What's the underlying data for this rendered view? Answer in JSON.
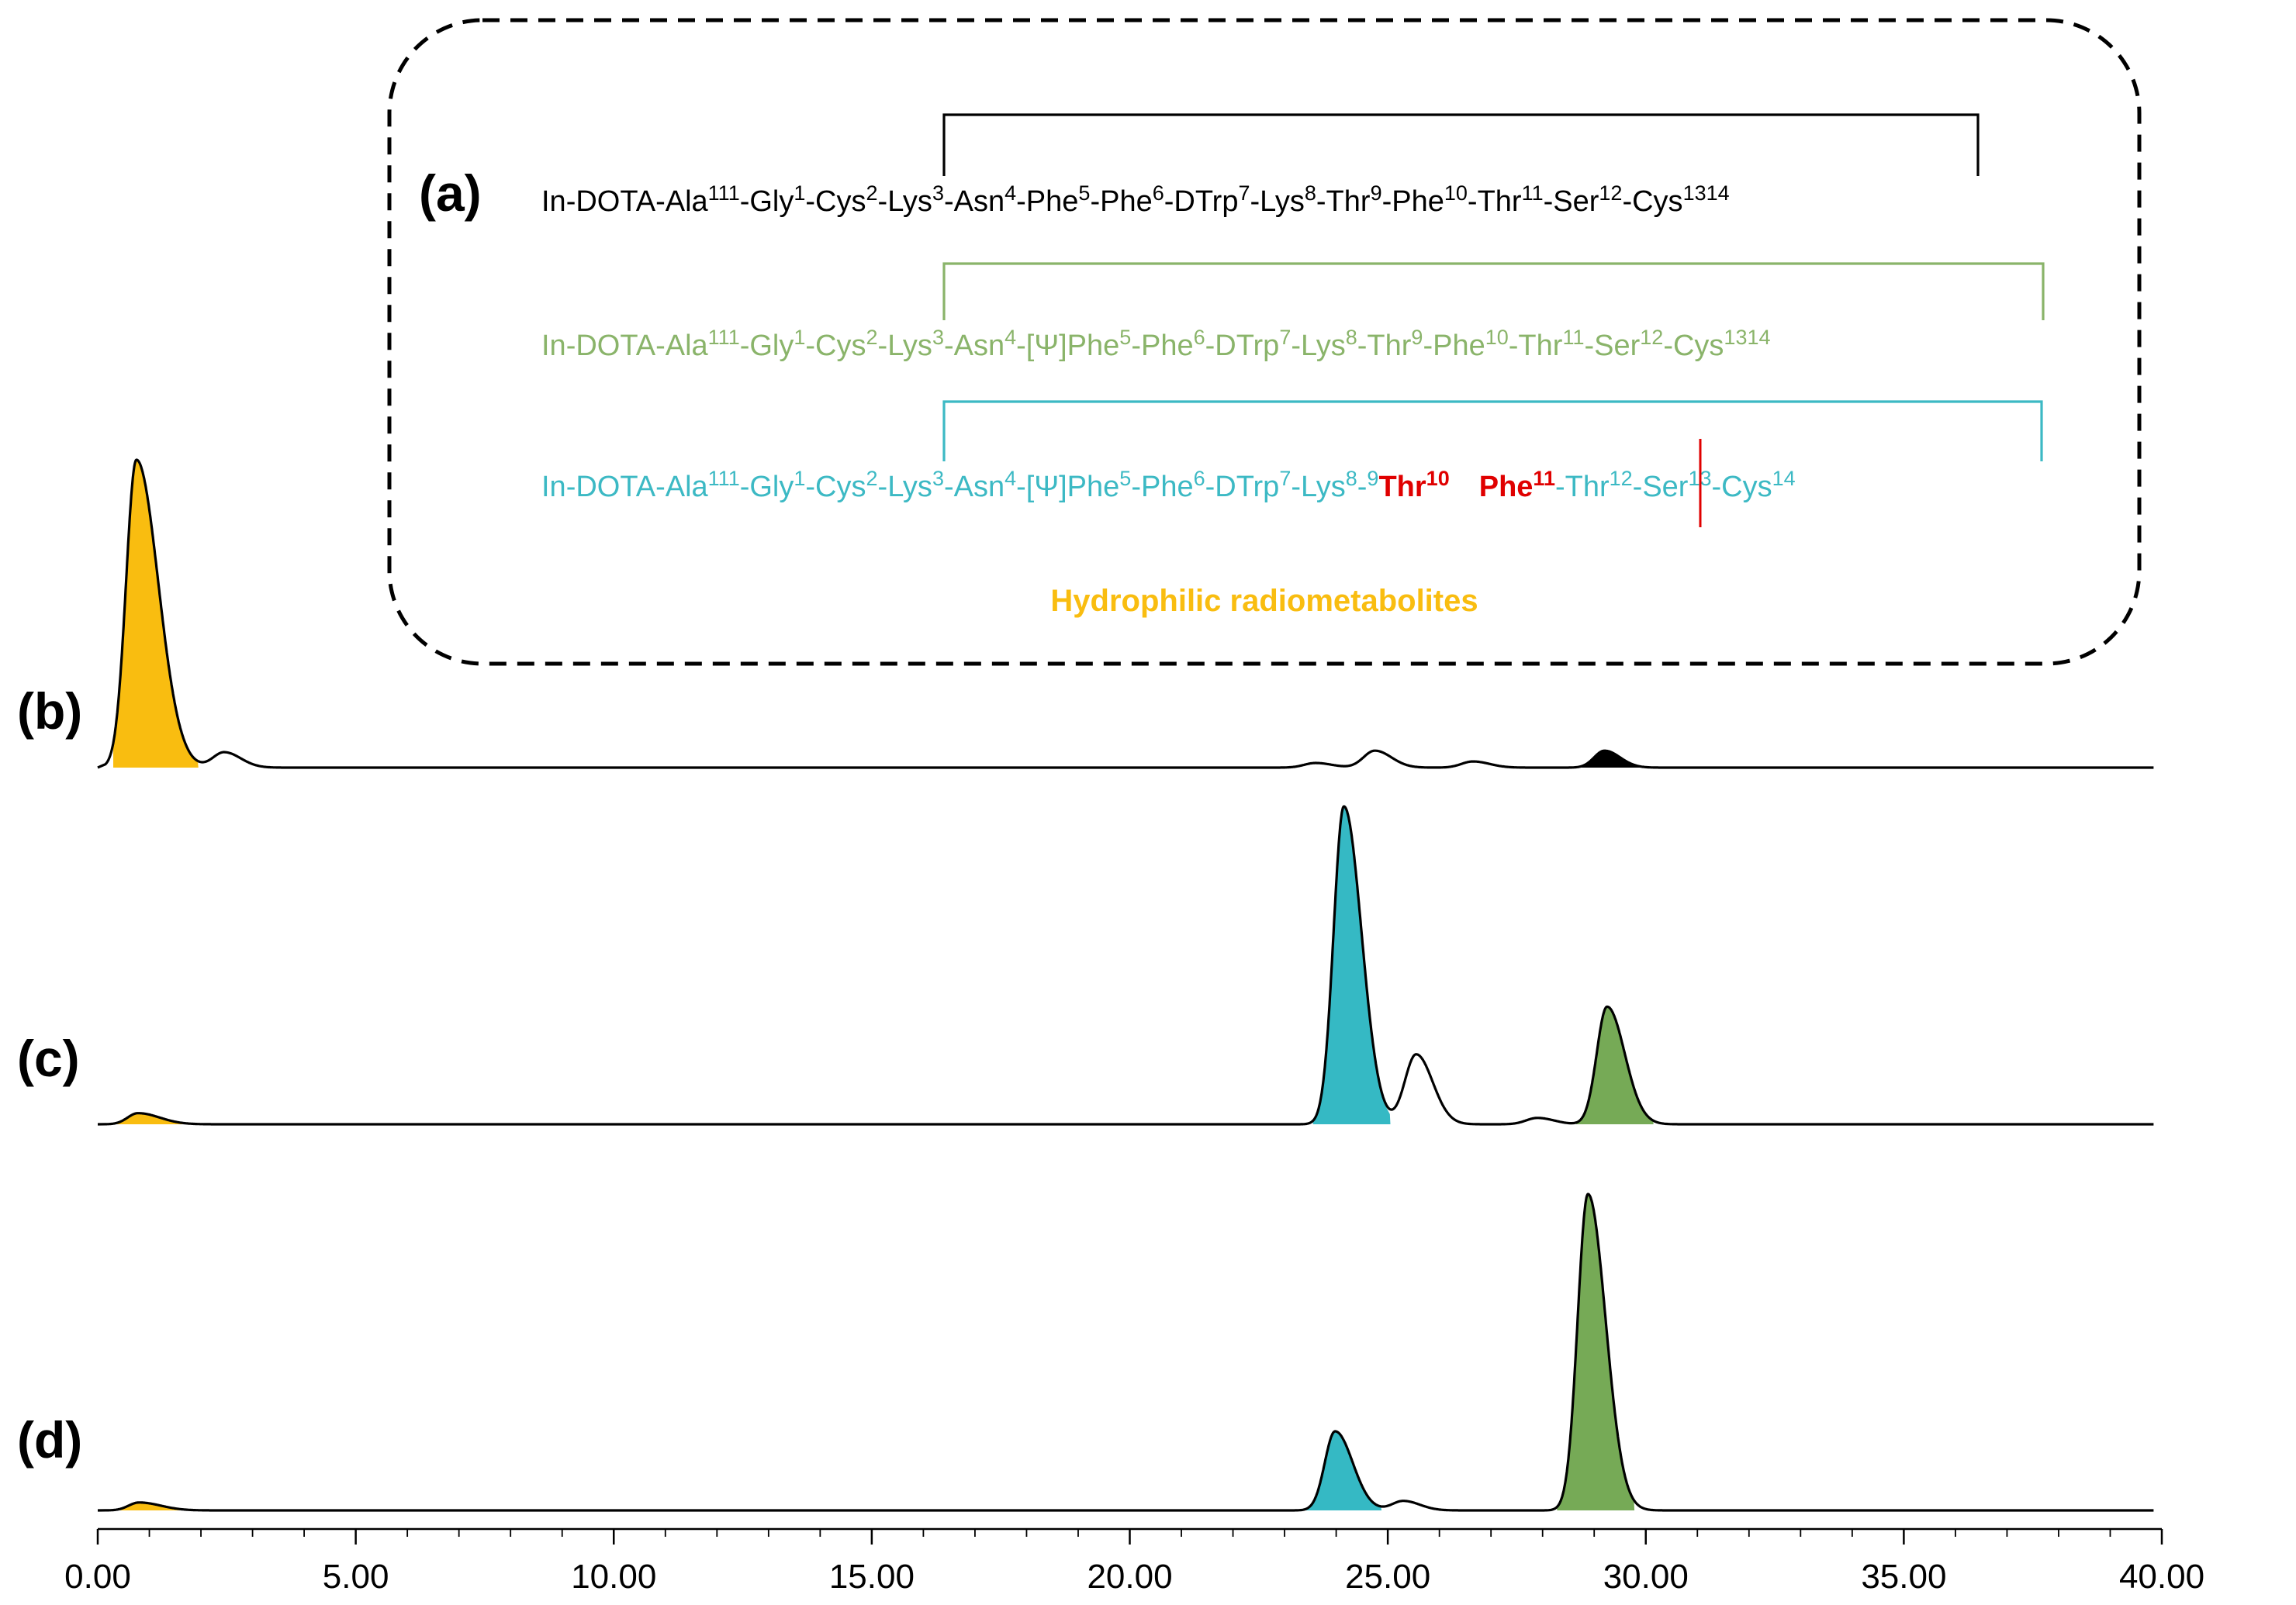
{
  "chart_data": {
    "type": "line",
    "title": "",
    "xlabel": "",
    "ylabel": "",
    "xlim": [
      0,
      40
    ],
    "x_ticks": [
      "0.00",
      "5.00",
      "10.00",
      "15.00",
      "20.00",
      "25.00",
      "30.00",
      "35.00",
      "40.00"
    ],
    "colors": {
      "trace": "#000000",
      "black_seq": "#000000",
      "green_seq": "#8ab46a",
      "cyan_seq": "#3cb9c4",
      "highlight": "#e00000",
      "metabolite": "#f9bd10",
      "cyan_fill": "#35b9c4",
      "green_fill": "#76aa56",
      "black_fill": "#000000"
    },
    "legend": {
      "panel_label": "(a)",
      "sequences": [
        {
          "color": "black",
          "segments": [
            {
              "sup": "111",
              "text": "In-DOTA-Ala"
            },
            {
              "sup": "1",
              "text": "-Gly"
            },
            {
              "sup": "2",
              "text": "-Cys"
            },
            {
              "sup": "3",
              "text": "-Lys"
            },
            {
              "sup": "4",
              "text": "-Asn"
            },
            {
              "sup": "5",
              "text": "-Phe"
            },
            {
              "sup": "6",
              "text": "-Phe"
            },
            {
              "sup": "7",
              "text": "-DTrp"
            },
            {
              "sup": "8",
              "text": "-Lys"
            },
            {
              "sup": "9",
              "text": "-Thr"
            },
            {
              "sup": "10",
              "text": "-Phe"
            },
            {
              "sup": "11",
              "text": "-Thr"
            },
            {
              "sup": "12",
              "text": "-Ser"
            },
            {
              "sup": "13",
              "text": "-Cys"
            },
            {
              "sup": "14",
              "text": ""
            }
          ]
        },
        {
          "color": "green",
          "segments": [
            {
              "sup": "111",
              "text": "In-DOTA-Ala"
            },
            {
              "sup": "1",
              "text": "-Gly"
            },
            {
              "sup": "2",
              "text": "-Cys"
            },
            {
              "sup": "3",
              "text": "-Lys"
            },
            {
              "sup": "4",
              "text": "-Asn"
            },
            {
              "sup": "5",
              "text": "-[Ψ]Phe"
            },
            {
              "sup": "6",
              "text": "-Phe"
            },
            {
              "sup": "7",
              "text": "-DTrp"
            },
            {
              "sup": "8",
              "text": "-Lys"
            },
            {
              "sup": "9",
              "text": "-Thr"
            },
            {
              "sup": "10",
              "text": "-Phe"
            },
            {
              "sup": "11",
              "text": "-Thr"
            },
            {
              "sup": "12",
              "text": "-Ser"
            },
            {
              "sup": "13",
              "text": "-Cys"
            },
            {
              "sup": "14",
              "text": ""
            }
          ]
        },
        {
          "color": "cyan",
          "segments": [
            {
              "sup": "111",
              "text": "In-DOTA-Ala"
            },
            {
              "sup": "1",
              "text": "-Gly"
            },
            {
              "sup": "2",
              "text": "-Cys"
            },
            {
              "sup": "3",
              "text": "-Lys"
            },
            {
              "sup": "4",
              "text": "-Asn"
            },
            {
              "sup": "5",
              "text": "-[Ψ]Phe"
            },
            {
              "sup": "6",
              "text": "-Phe"
            },
            {
              "sup": "7",
              "text": "-DTrp"
            },
            {
              "sup": "8",
              "text": "-Lys"
            },
            {
              "sup": "9",
              "text": "-"
            }
          ],
          "highlight_segments": [
            {
              "text": "Thr",
              "sup": "10"
            },
            {
              "text": "Phe",
              "sup": "11"
            }
          ],
          "tail_segments": [
            {
              "text": "-Thr",
              "sup": "12"
            },
            {
              "text": "-Ser",
              "sup": "13"
            },
            {
              "text": "-Cys",
              "sup": "14"
            }
          ]
        }
      ],
      "metabolite_label": "Hydrophilic radiometabolites"
    },
    "series": [
      {
        "name": "",
        "label": "(b)",
        "peaks": [
          {
            "rt": 0.75,
            "height": 1.0,
            "role": "metabolite"
          },
          {
            "rt": 2.45,
            "height": 0.05,
            "role": "minor"
          },
          {
            "rt": 23.6,
            "height": 0.015,
            "role": "minor"
          },
          {
            "rt": 24.75,
            "height": 0.055,
            "role": "minor"
          },
          {
            "rt": 26.65,
            "height": 0.02,
            "role": "minor"
          },
          {
            "rt": 29.2,
            "height": 0.055,
            "role": "black"
          }
        ]
      },
      {
        "name": "",
        "label": "(c)",
        "peaks": [
          {
            "rt": 0.78,
            "height": 0.035,
            "role": "metabolite"
          },
          {
            "rt": 24.15,
            "height": 1.0,
            "role": "cyan"
          },
          {
            "rt": 25.55,
            "height": 0.22,
            "role": "minor"
          },
          {
            "rt": 27.9,
            "height": 0.02,
            "role": "minor"
          },
          {
            "rt": 29.25,
            "height": 0.37,
            "role": "green"
          }
        ]
      },
      {
        "name": "",
        "label": "(d)",
        "peaks": [
          {
            "rt": 0.8,
            "height": 0.025,
            "role": "metabolite"
          },
          {
            "rt": 23.98,
            "height": 0.25,
            "role": "cyan"
          },
          {
            "rt": 25.3,
            "height": 0.03,
            "role": "minor"
          },
          {
            "rt": 28.88,
            "height": 1.0,
            "role": "green"
          }
        ]
      }
    ]
  }
}
